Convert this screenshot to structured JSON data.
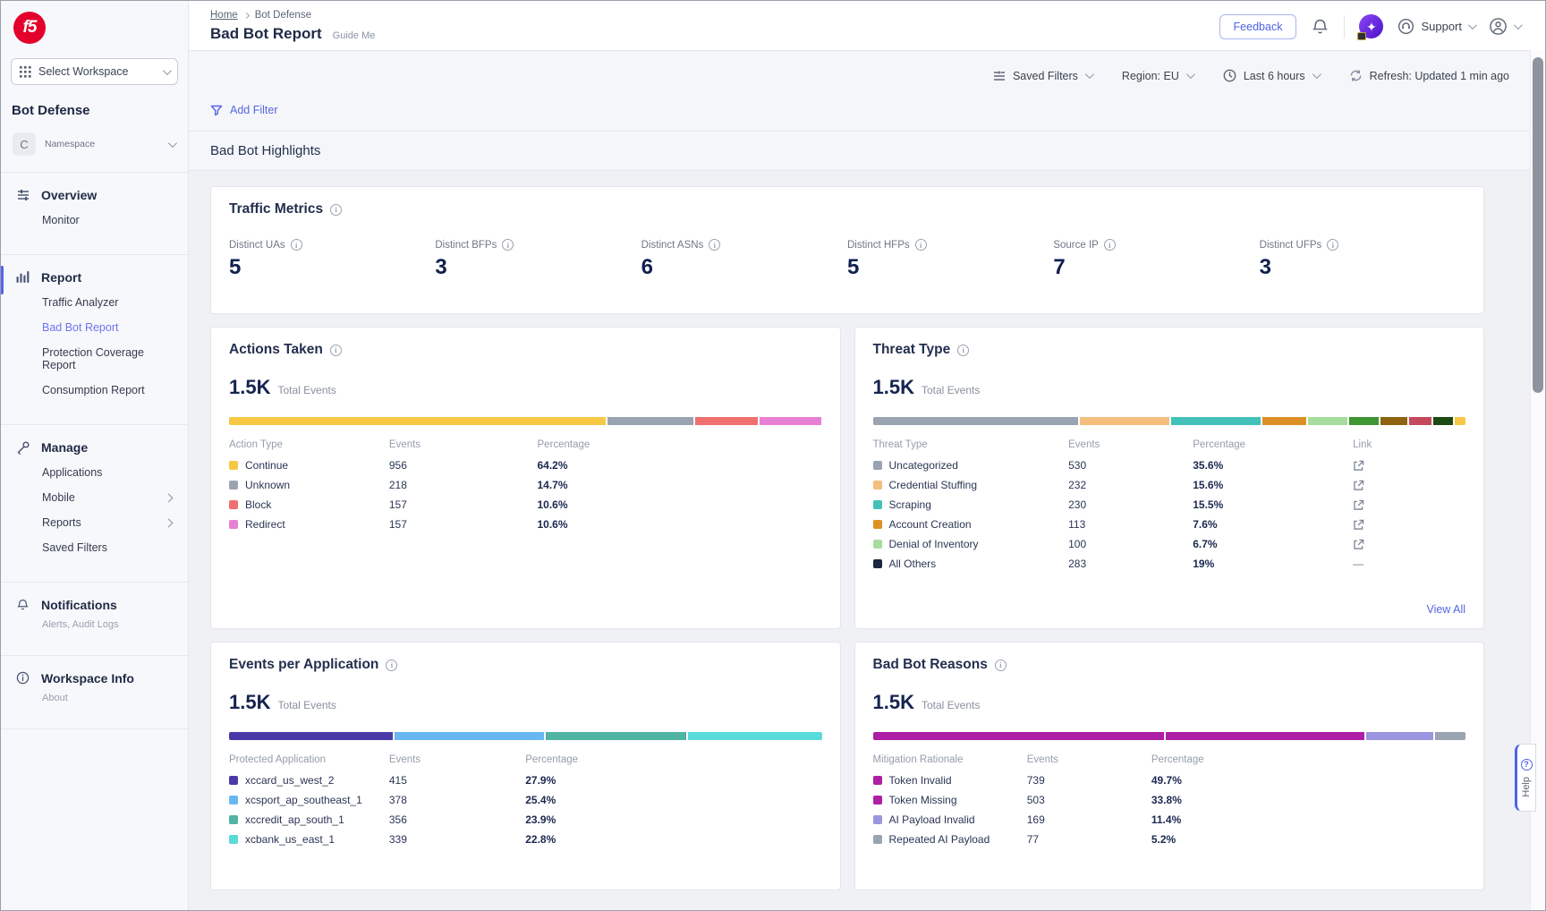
{
  "brand": {
    "logo_text": "f5"
  },
  "header": {
    "breadcrumb": [
      "Home",
      "Bot Defense"
    ],
    "title": "Bad Bot Report",
    "guide_me": "Guide Me",
    "feedback_label": "Feedback",
    "support_label": "Support"
  },
  "filter_bar": {
    "saved_filters": "Saved Filters",
    "region": "Region: EU",
    "time_range": "Last 6 hours",
    "refresh": "Refresh: Updated 1 min ago",
    "add_filter": "Add Filter"
  },
  "sidebar": {
    "workspace_selector": "Select Workspace",
    "product": "Bot Defense",
    "namespace": {
      "initial": "C",
      "label": "Namespace"
    },
    "overview": {
      "label": "Overview",
      "items": [
        "Monitor"
      ]
    },
    "report": {
      "label": "Report",
      "items": [
        "Traffic Analyzer",
        "Bad Bot Report",
        "Protection Coverage Report",
        "Consumption Report"
      ],
      "active_item": "Bad Bot Report"
    },
    "manage": {
      "label": "Manage",
      "items": [
        "Applications",
        "Mobile",
        "Reports",
        "Saved Filters"
      ]
    },
    "notifications": {
      "label": "Notifications",
      "subtitle": "Alerts, Audit Logs"
    },
    "workspace_info": {
      "label": "Workspace Info",
      "subtitle": "About"
    }
  },
  "highlights_title": "Bad Bot Highlights",
  "traffic_metrics": {
    "title": "Traffic Metrics",
    "metrics": [
      {
        "label": "Distinct UAs",
        "value": "5"
      },
      {
        "label": "Distinct BFPs",
        "value": "3"
      },
      {
        "label": "Distinct ASNs",
        "value": "6"
      },
      {
        "label": "Distinct HFPs",
        "value": "5"
      },
      {
        "label": "Source IP",
        "value": "7"
      },
      {
        "label": "Distinct UFPs",
        "value": "3"
      }
    ]
  },
  "cards": {
    "actions_taken": {
      "title": "Actions Taken",
      "total": "1.5K",
      "total_label": "Total Events",
      "columns": [
        "Action Type",
        "Events",
        "Percentage"
      ],
      "rows": [
        {
          "label": "Continue",
          "color": "#F6C843",
          "events": "956",
          "percentage": "64.2%"
        },
        {
          "label": "Unknown",
          "color": "#9AA3B2",
          "events": "218",
          "percentage": "14.7%"
        },
        {
          "label": "Block",
          "color": "#EE7170",
          "events": "157",
          "percentage": "10.6%"
        },
        {
          "label": "Redirect",
          "color": "#E780D2",
          "events": "157",
          "percentage": "10.6%"
        }
      ],
      "bar": [
        {
          "color": "#F6C843",
          "pct": 64.2
        },
        {
          "color": "#9AA3B2",
          "pct": 14.7
        },
        {
          "color": "#EE7170",
          "pct": 10.6
        },
        {
          "color": "#E780D2",
          "pct": 10.6
        }
      ]
    },
    "threat_type": {
      "title": "Threat Type",
      "total": "1.5K",
      "total_label": "Total Events",
      "columns": [
        "Threat Type",
        "Events",
        "Percentage",
        "Link"
      ],
      "rows": [
        {
          "label": "Uncategorized",
          "color": "#9AA3B2",
          "events": "530",
          "percentage": "35.6%"
        },
        {
          "label": "Credential Stuffing",
          "color": "#F4BE7C",
          "events": "232",
          "percentage": "15.6%"
        },
        {
          "label": "Scraping",
          "color": "#43C1B8",
          "events": "230",
          "percentage": "15.5%"
        },
        {
          "label": "Account Creation",
          "color": "#DD9025",
          "events": "113",
          "percentage": "7.6%"
        },
        {
          "label": "Denial of Inventory",
          "color": "#A6DD9E",
          "events": "100",
          "percentage": "6.7%"
        },
        {
          "label": "All Others",
          "color": "#1A2742",
          "events": "283",
          "percentage": "19%"
        }
      ],
      "no_link_text": "—",
      "view_all": "View All",
      "bar": [
        {
          "color": "#9AA3B2",
          "pct": 35.6
        },
        {
          "color": "#F4BE7C",
          "pct": 15.6
        },
        {
          "color": "#43C1B8",
          "pct": 15.5
        },
        {
          "color": "#DD9025",
          "pct": 7.6
        },
        {
          "color": "#A6DD9E",
          "pct": 6.7
        },
        {
          "color": "#3D9632",
          "pct": 5.2
        },
        {
          "color": "#8F6310",
          "pct": 4.6
        },
        {
          "color": "#C5485C",
          "pct": 4.0
        },
        {
          "color": "#1C4A14",
          "pct": 3.4
        },
        {
          "color": "#F6C843",
          "pct": 1.8
        }
      ]
    },
    "events_per_application": {
      "title": "Events per Application",
      "total": "1.5K",
      "total_label": "Total Events",
      "columns": [
        "Protected Application",
        "Events",
        "Percentage"
      ],
      "rows": [
        {
          "label": "xccard_us_west_2",
          "color": "#4A3AA8",
          "events": "415",
          "percentage": "27.9%"
        },
        {
          "label": "xcsport_ap_southeast_1",
          "color": "#68B7F1",
          "events": "378",
          "percentage": "25.4%"
        },
        {
          "label": "xccredit_ap_south_1",
          "color": "#4FB4A4",
          "events": "356",
          "percentage": "23.9%"
        },
        {
          "label": "xcbank_us_east_1",
          "color": "#59DBD8",
          "events": "339",
          "percentage": "22.8%"
        }
      ],
      "bar": [
        {
          "color": "#4A3AA8",
          "pct": 27.9
        },
        {
          "color": "#68B7F1",
          "pct": 25.4
        },
        {
          "color": "#4FB4A4",
          "pct": 23.9
        },
        {
          "color": "#59DBD8",
          "pct": 22.8
        }
      ]
    },
    "bad_bot_reasons": {
      "title": "Bad Bot Reasons",
      "total": "1.5K",
      "total_label": "Total Events",
      "columns": [
        "Mitigation Rationale",
        "Events",
        "Percentage"
      ],
      "rows": [
        {
          "label": "Token Invalid",
          "color": "#AE1FA5",
          "events": "739",
          "percentage": "49.7%"
        },
        {
          "label": "Token Missing",
          "color": "#AE1FA5",
          "events": "503",
          "percentage": "33.8%"
        },
        {
          "label": "AI Payload Invalid",
          "color": "#9C95DF",
          "events": "169",
          "percentage": "11.4%"
        },
        {
          "label": "Repeated AI Payload",
          "color": "#9AA3B2",
          "events": "77",
          "percentage": "5.2%"
        }
      ],
      "bar": [
        {
          "color": "#AE1FA5",
          "pct": 49.7
        },
        {
          "color": "#AE1FA5",
          "pct": 33.8
        },
        {
          "color": "#9C95DF",
          "pct": 11.4
        },
        {
          "color": "#9AA3B2",
          "pct": 5.2
        }
      ]
    }
  },
  "help_tab": "Help"
}
